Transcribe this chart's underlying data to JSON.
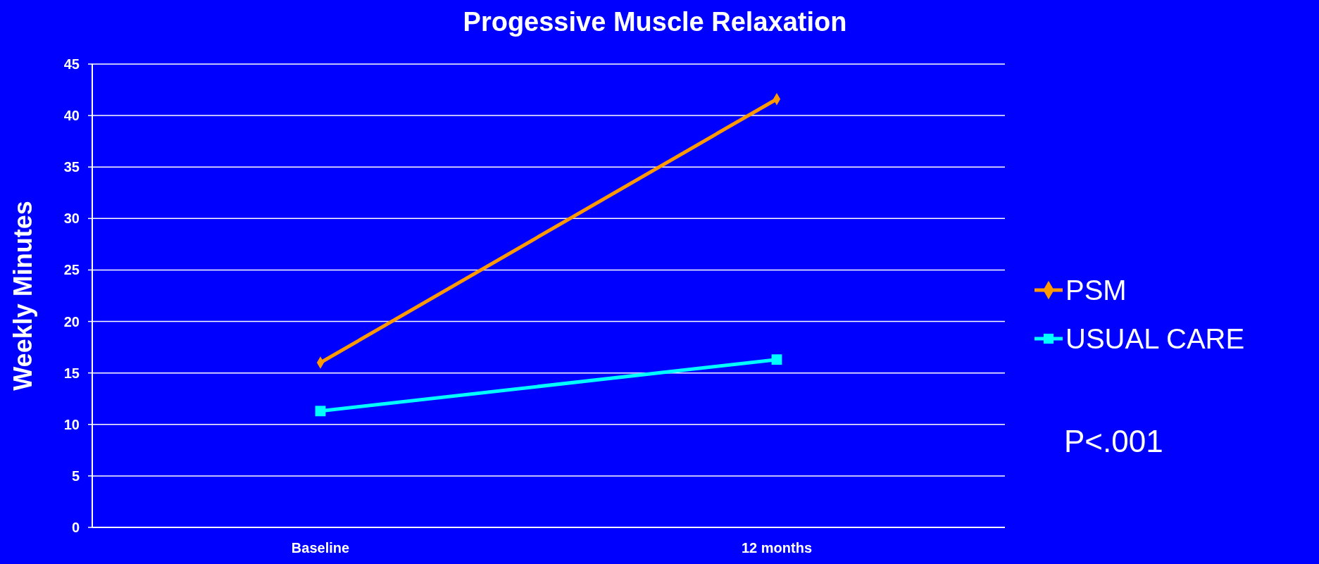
{
  "chart_data": {
    "type": "line",
    "title": "Progessive Muscle Relaxation",
    "ylabel": "Weekly Minutes",
    "categories": [
      "Baseline",
      "12 months"
    ],
    "series": [
      {
        "name": "PSM",
        "color": "#ff9900",
        "values": [
          16,
          41.6
        ],
        "marker": "diamond"
      },
      {
        "name": "USUAL CARE",
        "color": "#00ffff",
        "values": [
          11.3,
          16.3
        ],
        "marker": "square"
      }
    ],
    "ylim": [
      0,
      45
    ],
    "yticks": [
      0,
      5,
      10,
      15,
      20,
      25,
      30,
      35,
      40,
      45
    ],
    "grid": "y",
    "legend": "right",
    "annotations": [
      "P<.001"
    ]
  }
}
